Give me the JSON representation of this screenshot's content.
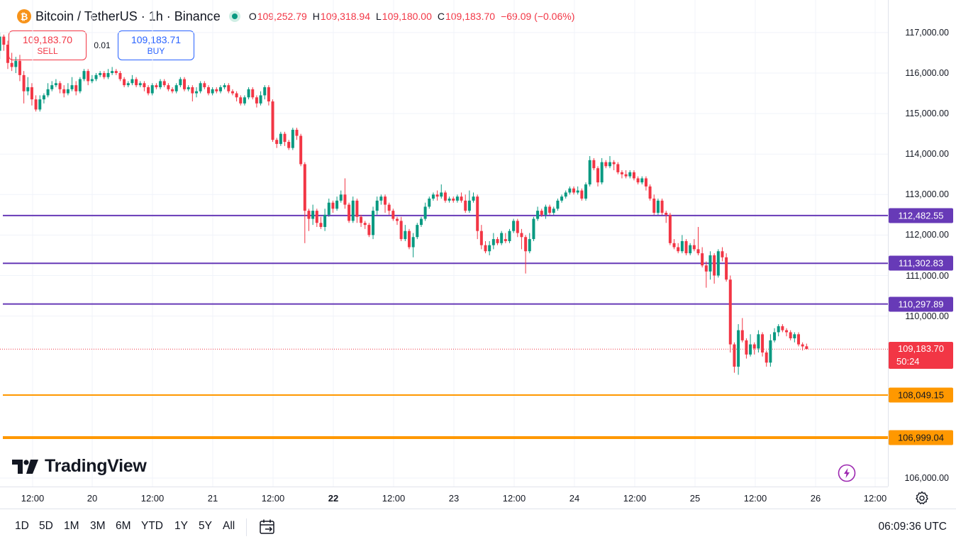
{
  "header": {
    "symbol_title": "Bitcoin / TetherUS · 1h · Binance",
    "ohlc": [
      {
        "key": "O",
        "value": "109,252.79"
      },
      {
        "key": "H",
        "value": "109,318.94"
      },
      {
        "key": "L",
        "value": "109,180.00"
      },
      {
        "key": "C",
        "value": "109,183.70"
      }
    ],
    "change": "−69.09 (−0.06%)",
    "coin_icon": "bitcoin-icon",
    "coin_glyph": "₿"
  },
  "trade": {
    "sell_price": "109,183.70",
    "sell_label": "SELL",
    "spread": "0.01",
    "buy_price": "109,183.71",
    "buy_label": "BUY"
  },
  "price_axis": {
    "ticks": [
      "117,000.00",
      "116,000.00",
      "115,000.00",
      "114,000.00",
      "113,000.00",
      "112,000.00",
      "111,000.00",
      "110,000.00",
      "106,000.00"
    ],
    "tick_values": [
      117000,
      116000,
      115000,
      114000,
      113000,
      112000,
      111000,
      110000,
      106000
    ],
    "current_price": "109,183.70",
    "countdown": "50:24"
  },
  "levels": [
    {
      "label": "112,482.55",
      "value": 112482.55,
      "color": "#673ab7"
    },
    {
      "label": "111,302.83",
      "value": 111302.83,
      "color": "#673ab7"
    },
    {
      "label": "110,297.89",
      "value": 110297.89,
      "color": "#673ab7"
    },
    {
      "label": "108,049.15",
      "value": 108049.15,
      "color": "#ff9800"
    },
    {
      "label": "106,999.04",
      "value": 106999.04,
      "color": "#ff9800"
    }
  ],
  "time_axis": {
    "ticks": [
      "12:00",
      "20",
      "12:00",
      "21",
      "12:00",
      "22",
      "12:00",
      "23",
      "12:00",
      "24",
      "12:00",
      "25",
      "12:00",
      "26",
      "12:00"
    ],
    "bold_tick": "22"
  },
  "ranges": [
    "1D",
    "5D",
    "1M",
    "3M",
    "6M",
    "YTD",
    "1Y",
    "5Y",
    "All"
  ],
  "clock": "06:09:36 UTC",
  "brand": "TradingView",
  "colors": {
    "up": "#089981",
    "down": "#f23645",
    "level_purple": "#673ab7",
    "level_orange": "#ff9800",
    "sell": "#f23645",
    "buy": "#2962ff"
  },
  "chart_data": {
    "type": "candlestick",
    "title": "Bitcoin / TetherUS · 1h · Binance",
    "interval": "1h",
    "x_start": "19 12:00",
    "x_step": "1h",
    "ylim": [
      105800,
      117400
    ],
    "grid": true,
    "candles": [
      [
        116600,
        116550,
        117100,
        116480
      ],
      [
        116550,
        116900,
        117000,
        116350
      ],
      [
        116900,
        116700,
        116950,
        116550
      ],
      [
        116700,
        116250,
        116800,
        116100
      ],
      [
        116250,
        116150,
        116500,
        116050
      ],
      [
        116150,
        116300,
        116400,
        116000
      ],
      [
        116300,
        115950,
        116450,
        115800
      ],
      [
        115950,
        115550,
        116050,
        115250
      ],
      [
        115550,
        115650,
        115900,
        115450
      ],
      [
        115650,
        115350,
        115750,
        115200
      ],
      [
        115350,
        115100,
        115450,
        115050
      ],
      [
        115100,
        115350,
        115450,
        115050
      ],
      [
        115350,
        115450,
        115500,
        115250
      ],
      [
        115450,
        115600,
        115750,
        115400
      ],
      [
        115600,
        115700,
        115800,
        115550
      ],
      [
        115700,
        115750,
        115850,
        115650
      ],
      [
        115750,
        115600,
        115800,
        115500
      ],
      [
        115600,
        115500,
        115700,
        115400
      ],
      [
        115500,
        115600,
        115750,
        115450
      ],
      [
        115600,
        115700,
        115900,
        115550
      ],
      [
        115700,
        115550,
        115800,
        115450
      ],
      [
        115550,
        115850,
        115900,
        115500
      ],
      [
        115850,
        116050,
        116100,
        115800
      ],
      [
        116050,
        115800,
        116100,
        115700
      ],
      [
        115800,
        115850,
        115950,
        115750
      ],
      [
        115850,
        115950,
        116000,
        115800
      ],
      [
        115950,
        116000,
        116050,
        115900
      ],
      [
        116000,
        115900,
        116050,
        115850
      ],
      [
        115900,
        116000,
        116100,
        115850
      ],
      [
        116000,
        116050,
        116150,
        115950
      ],
      [
        116050,
        116000,
        116100,
        115950
      ],
      [
        116000,
        115850,
        116050,
        115800
      ],
      [
        115850,
        115700,
        115900,
        115650
      ],
      [
        115700,
        115750,
        115800,
        115650
      ],
      [
        115750,
        115850,
        115950,
        115700
      ],
      [
        115850,
        115700,
        115900,
        115650
      ],
      [
        115700,
        115750,
        115800,
        115650
      ],
      [
        115750,
        115650,
        115800,
        115550
      ],
      [
        115650,
        115500,
        115700,
        115450
      ],
      [
        115500,
        115700,
        115750,
        115450
      ],
      [
        115700,
        115650,
        115750,
        115600
      ],
      [
        115650,
        115800,
        115850,
        115600
      ],
      [
        115800,
        115700,
        115850,
        115650
      ],
      [
        115700,
        115600,
        115750,
        115550
      ],
      [
        115600,
        115550,
        115650,
        115500
      ],
      [
        115550,
        115700,
        115750,
        115500
      ],
      [
        115700,
        115850,
        115900,
        115650
      ],
      [
        115850,
        115600,
        115900,
        115550
      ],
      [
        115600,
        115650,
        115700,
        115550
      ],
      [
        115650,
        115500,
        115700,
        115300
      ],
      [
        115500,
        115550,
        115650,
        115400
      ],
      [
        115550,
        115750,
        115800,
        115500
      ],
      [
        115750,
        115650,
        115800,
        115600
      ],
      [
        115650,
        115500,
        115700,
        115450
      ],
      [
        115500,
        115600,
        115650,
        115450
      ],
      [
        115600,
        115550,
        115650,
        115500
      ],
      [
        115550,
        115650,
        115700,
        115500
      ],
      [
        115650,
        115700,
        115750,
        115600
      ],
      [
        115700,
        115550,
        115750,
        115500
      ],
      [
        115550,
        115500,
        115600,
        115450
      ],
      [
        115500,
        115400,
        115550,
        115300
      ],
      [
        115400,
        115250,
        115450,
        115200
      ],
      [
        115250,
        115400,
        115450,
        115200
      ],
      [
        115400,
        115600,
        115650,
        115350
      ],
      [
        115600,
        115400,
        115650,
        115350
      ],
      [
        115400,
        115250,
        115450,
        115150
      ],
      [
        115250,
        115450,
        115550,
        115200
      ],
      [
        115450,
        115650,
        115700,
        115350
      ],
      [
        115650,
        115300,
        115700,
        115200
      ],
      [
        115300,
        114350,
        115350,
        114300
      ],
      [
        114350,
        114250,
        114400,
        114150
      ],
      [
        114250,
        114500,
        114550,
        114200
      ],
      [
        114500,
        114300,
        114550,
        114200
      ],
      [
        114300,
        114150,
        114350,
        114100
      ],
      [
        114150,
        114600,
        114650,
        114100
      ],
      [
        114600,
        114450,
        114650,
        114350
      ],
      [
        114450,
        113750,
        114500,
        113700
      ],
      [
        113750,
        112600,
        113800,
        111800
      ],
      [
        112600,
        112400,
        112650,
        112100
      ],
      [
        112400,
        112600,
        112750,
        112250
      ],
      [
        112600,
        112300,
        112650,
        112200
      ],
      [
        112300,
        112200,
        112450,
        112150
      ],
      [
        112200,
        112500,
        112650,
        112100
      ],
      [
        112500,
        112800,
        112900,
        112450
      ],
      [
        112800,
        112650,
        112850,
        112550
      ],
      [
        112650,
        112850,
        112950,
        112600
      ],
      [
        112850,
        113000,
        113100,
        112800
      ],
      [
        113000,
        112750,
        113400,
        112650
      ],
      [
        112750,
        112350,
        112800,
        112300
      ],
      [
        112350,
        112850,
        112950,
        112300
      ],
      [
        112850,
        112450,
        112900,
        112300
      ],
      [
        112450,
        112300,
        112500,
        112200
      ],
      [
        112300,
        112250,
        112350,
        112150
      ],
      [
        112250,
        112000,
        112300,
        111950
      ],
      [
        112000,
        112600,
        112700,
        111900
      ],
      [
        112600,
        112850,
        112950,
        112500
      ],
      [
        112850,
        112950,
        113000,
        112750
      ],
      [
        112950,
        112750,
        113000,
        112550
      ],
      [
        112750,
        112600,
        112800,
        112500
      ],
      [
        112600,
        112400,
        112650,
        112350
      ],
      [
        112400,
        112350,
        112450,
        112250
      ],
      [
        112350,
        111900,
        112450,
        111850
      ],
      [
        111900,
        112100,
        112250,
        111850
      ],
      [
        112100,
        111700,
        112150,
        111650
      ],
      [
        111700,
        111950,
        112050,
        111450
      ],
      [
        111950,
        112250,
        112300,
        111900
      ],
      [
        112250,
        112400,
        112450,
        112200
      ],
      [
        112400,
        112700,
        112800,
        112350
      ],
      [
        112700,
        112900,
        112950,
        112650
      ],
      [
        112900,
        113000,
        113050,
        112850
      ],
      [
        113000,
        112950,
        113100,
        112850
      ],
      [
        112950,
        113050,
        113250,
        112900
      ],
      [
        113050,
        112850,
        113100,
        112800
      ],
      [
        112850,
        112900,
        112950,
        112800
      ],
      [
        112900,
        112850,
        112950,
        112800
      ],
      [
        112850,
        112950,
        113000,
        112800
      ],
      [
        112950,
        112850,
        113050,
        112800
      ],
      [
        112850,
        112600,
        113000,
        112550
      ],
      [
        112600,
        112850,
        113100,
        112550
      ],
      [
        112850,
        112950,
        113050,
        112800
      ],
      [
        112950,
        112100,
        113000,
        111900
      ],
      [
        112100,
        111750,
        112250,
        111650
      ],
      [
        111750,
        111600,
        111850,
        111550
      ],
      [
        111600,
        111750,
        111850,
        111500
      ],
      [
        111750,
        111900,
        112050,
        111650
      ],
      [
        111900,
        111800,
        111950,
        111750
      ],
      [
        111800,
        112050,
        112100,
        111750
      ],
      [
        111900,
        111850,
        112050,
        111800
      ],
      [
        111850,
        112100,
        112150,
        111800
      ],
      [
        112100,
        112350,
        112400,
        112050
      ],
      [
        112350,
        112050,
        112400,
        111950
      ],
      [
        112050,
        111950,
        112150,
        111650
      ],
      [
        111950,
        111600,
        112000,
        111050
      ],
      [
        111600,
        111900,
        112050,
        111550
      ],
      [
        111900,
        112400,
        112450,
        111850
      ],
      [
        112400,
        112600,
        112700,
        112350
      ],
      [
        112600,
        112500,
        112650,
        112450
      ],
      [
        112500,
        112700,
        112750,
        112400
      ],
      [
        112700,
        112550,
        112750,
        112500
      ],
      [
        112550,
        112650,
        112700,
        112500
      ],
      [
        112650,
        112850,
        112900,
        112600
      ],
      [
        112850,
        112950,
        113000,
        112800
      ],
      [
        112950,
        113050,
        113100,
        112900
      ],
      [
        113050,
        113150,
        113200,
        113000
      ],
      [
        113150,
        113050,
        113200,
        113000
      ],
      [
        113050,
        113100,
        113200,
        113000
      ],
      [
        113100,
        112900,
        113150,
        112850
      ],
      [
        112900,
        113250,
        113300,
        112850
      ],
      [
        113250,
        113850,
        113950,
        113200
      ],
      [
        113850,
        113650,
        113900,
        113600
      ],
      [
        113650,
        113300,
        113700,
        113200
      ],
      [
        113300,
        113800,
        113900,
        113250
      ],
      [
        113800,
        113700,
        113850,
        113650
      ],
      [
        113700,
        113800,
        113950,
        113650
      ],
      [
        113800,
        113750,
        113850,
        113600
      ],
      [
        113750,
        113550,
        113800,
        113500
      ],
      [
        113550,
        113500,
        113600,
        113400
      ],
      [
        113500,
        113450,
        113600,
        113400
      ],
      [
        113450,
        113550,
        113600,
        113400
      ],
      [
        113550,
        113400,
        113600,
        113350
      ],
      [
        113400,
        113300,
        113450,
        113250
      ],
      [
        113300,
        113400,
        113450,
        113250
      ],
      [
        113400,
        113200,
        113450,
        113100
      ],
      [
        113200,
        112900,
        113250,
        112850
      ],
      [
        112900,
        112550,
        113000,
        112500
      ],
      [
        112550,
        112850,
        112900,
        112500
      ],
      [
        112850,
        112550,
        112900,
        112500
      ],
      [
        112550,
        112500,
        112600,
        112300
      ],
      [
        112500,
        111800,
        112550,
        111750
      ],
      [
        111800,
        111700,
        111900,
        111650
      ],
      [
        111700,
        111600,
        111800,
        111550
      ],
      [
        111600,
        111850,
        112000,
        111550
      ],
      [
        111850,
        111550,
        111900,
        111500
      ],
      [
        111550,
        111750,
        111800,
        111500
      ],
      [
        111750,
        111650,
        111900,
        111600
      ],
      [
        111650,
        111550,
        112200,
        111500
      ],
      [
        111550,
        111250,
        111700,
        111200
      ],
      [
        111250,
        111100,
        111350,
        110700
      ],
      [
        111100,
        111500,
        111600,
        110900
      ],
      [
        111500,
        111000,
        111550,
        110800
      ],
      [
        111000,
        111600,
        111650,
        110950
      ],
      [
        111600,
        111450,
        111700,
        111350
      ],
      [
        111450,
        110900,
        111550,
        110850
      ],
      [
        110900,
        109300,
        111000,
        109100
      ],
      [
        109300,
        108750,
        109350,
        108600
      ],
      [
        108750,
        109650,
        109800,
        108550
      ],
      [
        109650,
        109400,
        109950,
        109350
      ],
      [
        109400,
        109050,
        109450,
        108950
      ],
      [
        109050,
        109300,
        109550,
        109000
      ],
      [
        109300,
        109200,
        109350,
        109050
      ],
      [
        109200,
        109550,
        109650,
        109100
      ],
      [
        109550,
        109100,
        109600,
        109000
      ],
      [
        109100,
        108850,
        109150,
        108750
      ],
      [
        108850,
        109400,
        109550,
        108750
      ],
      [
        109400,
        109600,
        109700,
        109350
      ],
      [
        109600,
        109750,
        109800,
        109500
      ],
      [
        109750,
        109650,
        109800,
        109600
      ],
      [
        109650,
        109600,
        109700,
        109500
      ],
      [
        109600,
        109450,
        109650,
        109400
      ],
      [
        109450,
        109550,
        109600,
        109350
      ],
      [
        109550,
        109300,
        109600,
        109250
      ],
      [
        109300,
        109250,
        109350,
        109150
      ],
      [
        109252.79,
        109183.7,
        109318.94,
        109180.0
      ]
    ]
  }
}
